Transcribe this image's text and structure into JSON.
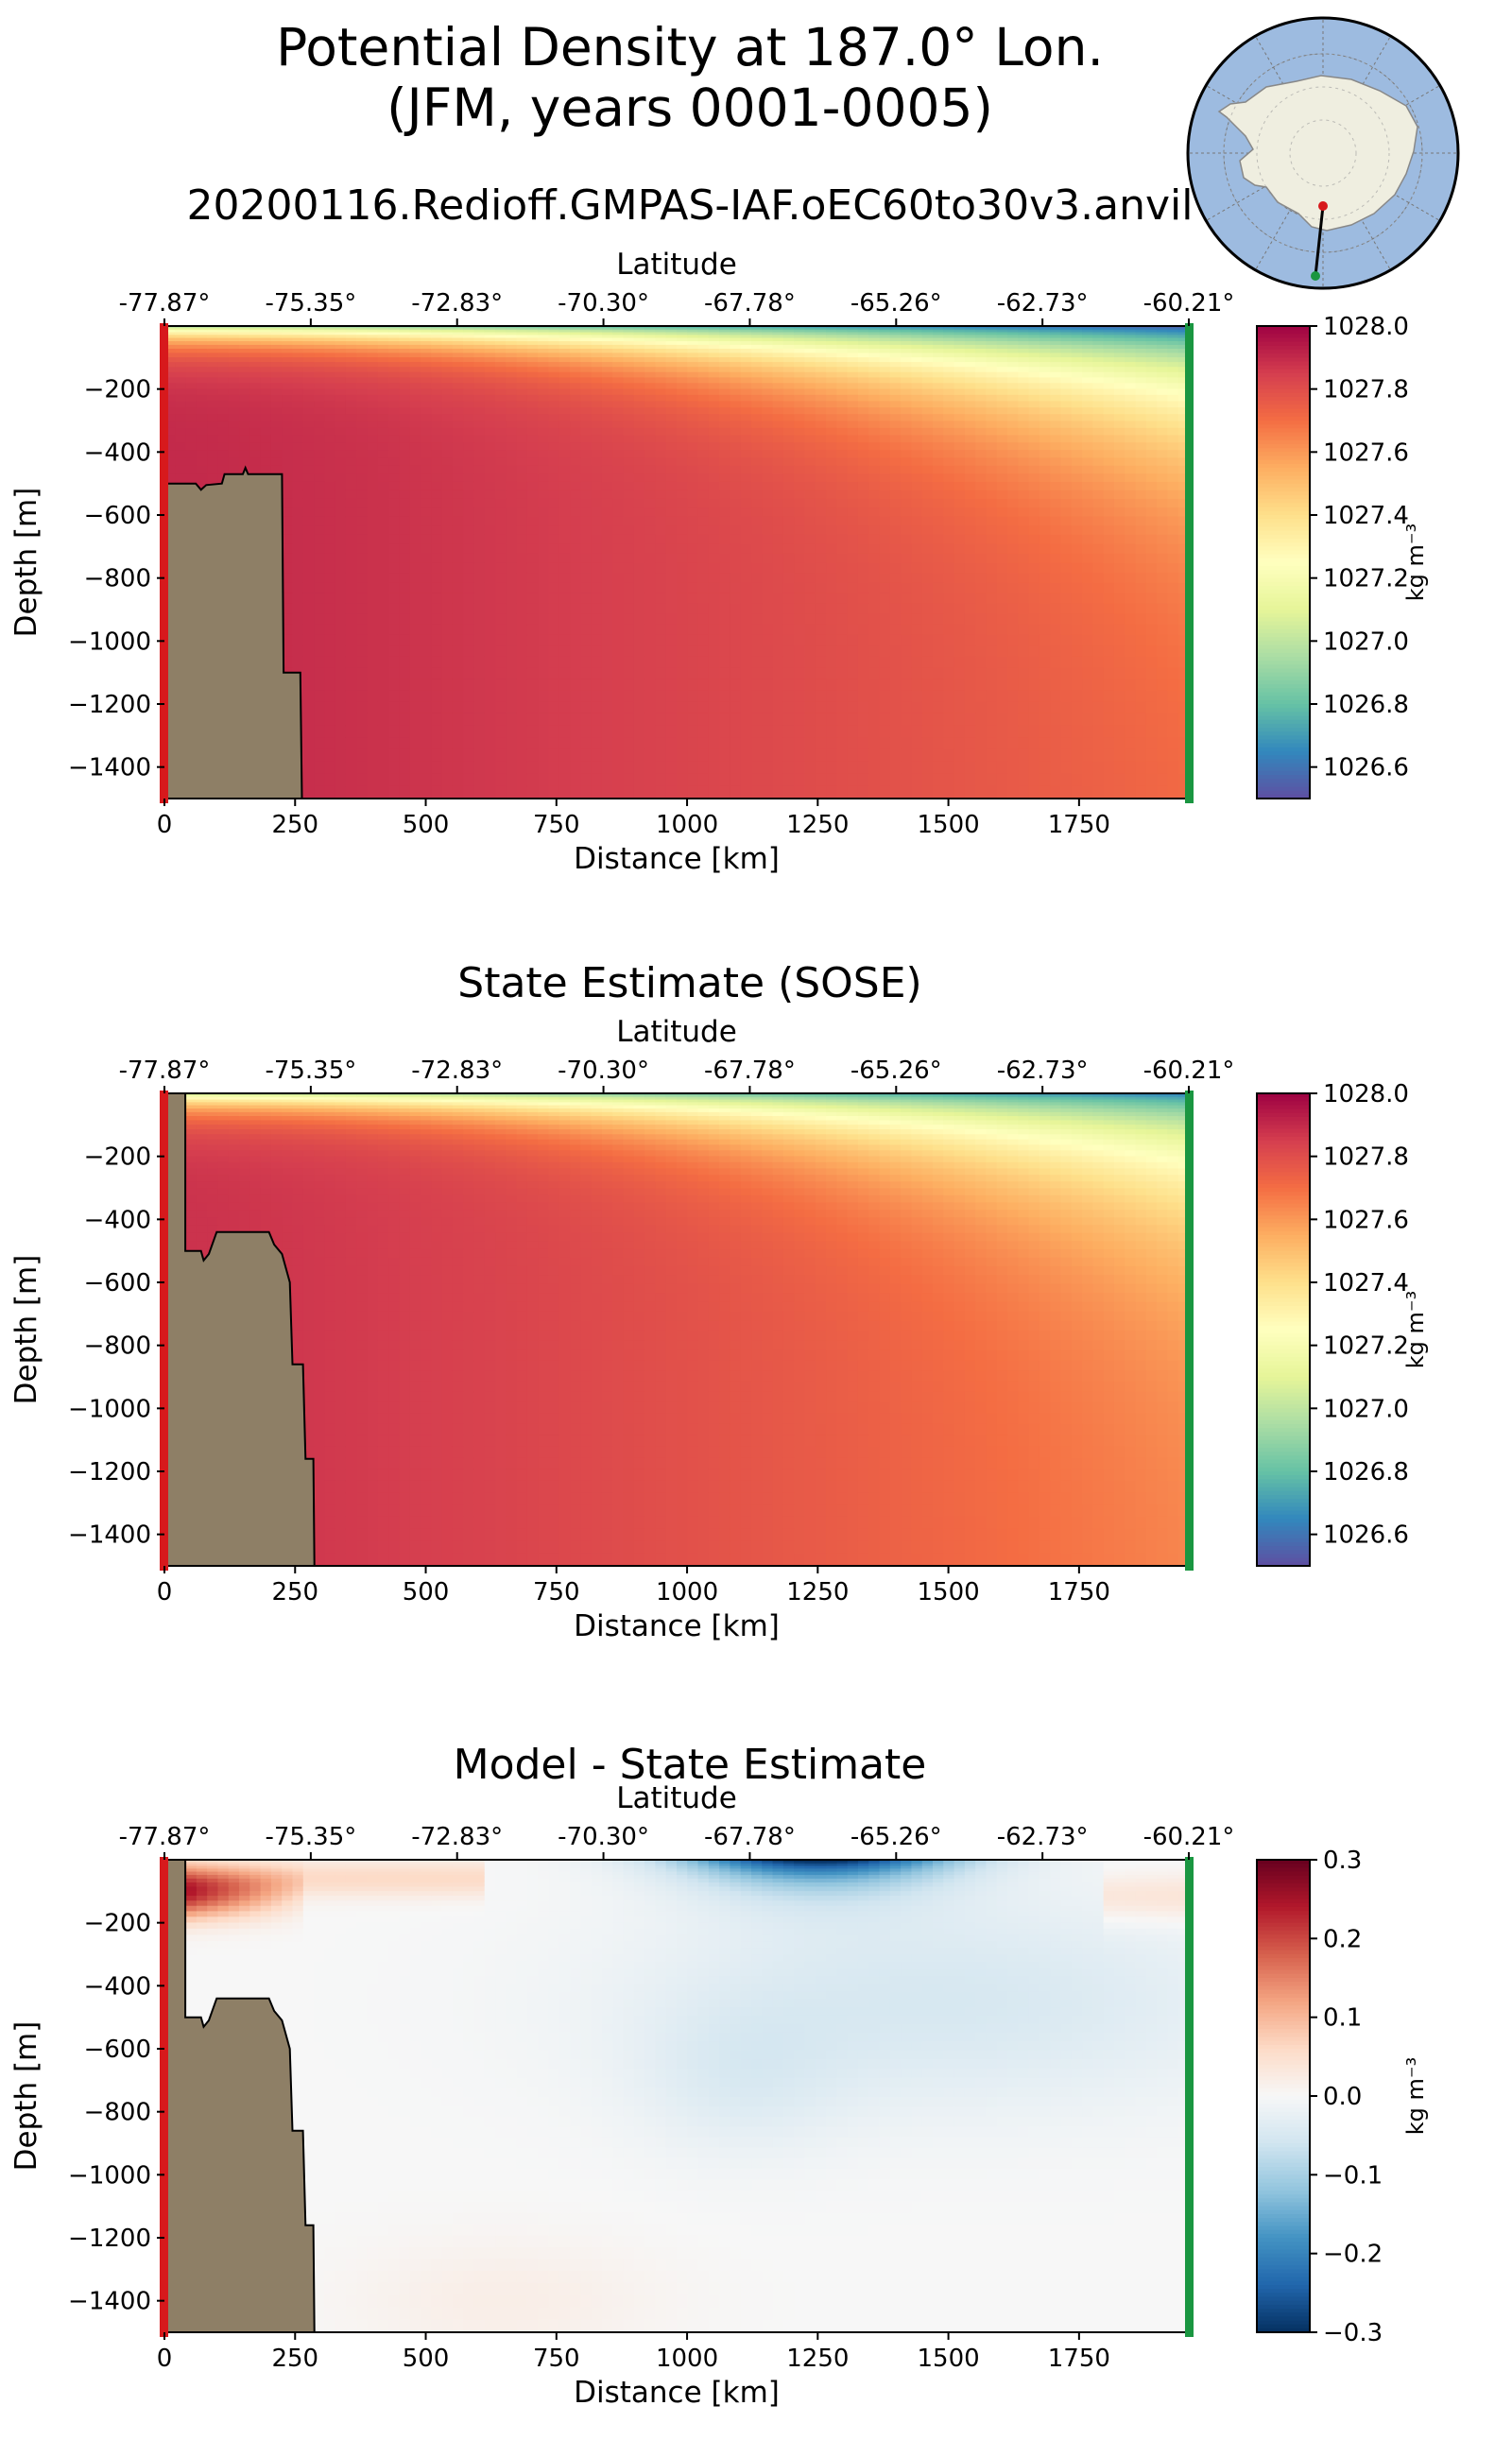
{
  "figure": {
    "title_line1": "Potential Density at 187.0° Lon.",
    "title_line2": "(JFM, years 0001-0005)",
    "subtitle": "20200116.Redioff.GMPAS-IAF.oEC60to30v3.anvil"
  },
  "colors": {
    "land": "#8e7f66",
    "start_marker": "#d7191c",
    "end_marker": "#1a9641",
    "ocean_map": "#9dbbe0",
    "antarctica": "#efeee0"
  },
  "chart_data": [
    {
      "type": "heatmap",
      "title": "",
      "xlabel": "Distance [km]",
      "ylabel": "Depth [m]",
      "top_xlabel": "Latitude",
      "x_ticks": [
        0,
        250,
        500,
        750,
        1000,
        1250,
        1500,
        1750
      ],
      "x_tick_labels": [
        "0",
        "250",
        "500",
        "750",
        "1000",
        "1250",
        "1500",
        "1750"
      ],
      "top_tick_labels": [
        "-77.87°",
        "-75.35°",
        "-72.83°",
        "-70.30°",
        "-67.78°",
        "-65.26°",
        "-62.73°",
        "-60.21°"
      ],
      "y_ticks": [
        -200,
        -400,
        -600,
        -800,
        -1000,
        -1200,
        -1400
      ],
      "y_tick_labels": [
        "−200",
        "−400",
        "−600",
        "−800",
        "−1000",
        "−1200",
        "−1400"
      ],
      "xlim": [
        0,
        1960
      ],
      "ylim": [
        -1500,
        0
      ],
      "colormap": "Spectral_r",
      "colorbar": {
        "label": "kg m⁻³",
        "range": [
          1026.5,
          1028.0
        ],
        "ticks": [
          "1028.0",
          "1027.8",
          "1027.6",
          "1027.4",
          "1027.2",
          "1027.0",
          "1026.8",
          "1026.6"
        ],
        "tick_values": [
          1028.0,
          1027.8,
          1027.6,
          1027.4,
          1027.2,
          1027.0,
          1026.8,
          1026.6
        ]
      },
      "field": {
        "surface_value": 1026.5,
        "deep_value_south": 1027.9,
        "deep_value_north": 1027.72
      },
      "bathymetry": [
        [
          0,
          -500
        ],
        [
          60,
          -500
        ],
        [
          70,
          -520
        ],
        [
          80,
          -505
        ],
        [
          110,
          -500
        ],
        [
          115,
          -470
        ],
        [
          150,
          -470
        ],
        [
          155,
          -450
        ],
        [
          160,
          -470
        ],
        [
          225,
          -470
        ],
        [
          228,
          -1100
        ],
        [
          260,
          -1100
        ],
        [
          263,
          -1500
        ]
      ]
    },
    {
      "type": "heatmap",
      "title": "State Estimate (SOSE)",
      "xlabel": "Distance [km]",
      "ylabel": "Depth [m]",
      "top_xlabel": "Latitude",
      "x_ticks": [
        0,
        250,
        500,
        750,
        1000,
        1250,
        1500,
        1750
      ],
      "x_tick_labels": [
        "0",
        "250",
        "500",
        "750",
        "1000",
        "1250",
        "1500",
        "1750"
      ],
      "top_tick_labels": [
        "-77.87°",
        "-75.35°",
        "-72.83°",
        "-70.30°",
        "-67.78°",
        "-65.26°",
        "-62.73°",
        "-60.21°"
      ],
      "y_ticks": [
        -200,
        -400,
        -600,
        -800,
        -1000,
        -1200,
        -1400
      ],
      "y_tick_labels": [
        "−200",
        "−400",
        "−600",
        "−800",
        "−1000",
        "−1200",
        "−1400"
      ],
      "xlim": [
        0,
        1960
      ],
      "ylim": [
        -1500,
        0
      ],
      "colormap": "Spectral_r",
      "colorbar": {
        "label": "kg m⁻³",
        "range": [
          1026.5,
          1028.0
        ],
        "ticks": [
          "1028.0",
          "1027.8",
          "1027.6",
          "1027.4",
          "1027.2",
          "1027.0",
          "1026.8",
          "1026.6"
        ],
        "tick_values": [
          1028.0,
          1027.8,
          1027.6,
          1027.4,
          1027.2,
          1027.0,
          1026.8,
          1026.6
        ]
      },
      "field": {
        "surface_value": 1026.6,
        "deep_value_south": 1027.88,
        "deep_value_north": 1027.65
      },
      "bathymetry": [
        [
          0,
          0
        ],
        [
          40,
          0
        ],
        [
          40,
          -500
        ],
        [
          70,
          -500
        ],
        [
          75,
          -530
        ],
        [
          85,
          -510
        ],
        [
          100,
          -440
        ],
        [
          200,
          -440
        ],
        [
          210,
          -480
        ],
        [
          225,
          -510
        ],
        [
          240,
          -600
        ],
        [
          245,
          -860
        ],
        [
          265,
          -860
        ],
        [
          270,
          -1160
        ],
        [
          285,
          -1160
        ],
        [
          287,
          -1500
        ]
      ]
    },
    {
      "type": "heatmap",
      "title": "Model - State Estimate",
      "xlabel": "Distance [km]",
      "ylabel": "Depth [m]",
      "top_xlabel": "Latitude",
      "x_ticks": [
        0,
        250,
        500,
        750,
        1000,
        1250,
        1500,
        1750
      ],
      "x_tick_labels": [
        "0",
        "250",
        "500",
        "750",
        "1000",
        "1250",
        "1500",
        "1750"
      ],
      "top_tick_labels": [
        "-77.87°",
        "-75.35°",
        "-72.83°",
        "-70.30°",
        "-67.78°",
        "-65.26°",
        "-62.73°",
        "-60.21°"
      ],
      "y_ticks": [
        -200,
        -400,
        -600,
        -800,
        -1000,
        -1200,
        -1400
      ],
      "y_tick_labels": [
        "−200",
        "−400",
        "−600",
        "−800",
        "−1000",
        "−1200",
        "−1400"
      ],
      "xlim": [
        0,
        1960
      ],
      "ylim": [
        -1500,
        0
      ],
      "colormap": "RdBu_r",
      "colorbar": {
        "label": "kg m⁻³",
        "range": [
          -0.3,
          0.3
        ],
        "ticks": [
          "0.3",
          "0.2",
          "0.1",
          "0.0",
          "−0.1",
          "−0.2",
          "−0.3"
        ],
        "tick_values": [
          0.3,
          0.2,
          0.1,
          0.0,
          -0.1,
          -0.2,
          -0.3
        ]
      },
      "field": {
        "near_shelf_surface_anomaly": 0.28,
        "surface_fresh_anomaly_min": -0.3,
        "fresh_anomaly_range_km": [
          850,
          1650
        ],
        "deep_anomaly": 0.0
      },
      "bathymetry": [
        [
          0,
          0
        ],
        [
          40,
          0
        ],
        [
          40,
          -500
        ],
        [
          70,
          -500
        ],
        [
          75,
          -530
        ],
        [
          85,
          -510
        ],
        [
          100,
          -440
        ],
        [
          200,
          -440
        ],
        [
          210,
          -480
        ],
        [
          225,
          -510
        ],
        [
          240,
          -600
        ],
        [
          245,
          -860
        ],
        [
          265,
          -860
        ],
        [
          270,
          -1160
        ],
        [
          285,
          -1160
        ],
        [
          287,
          -1500
        ]
      ]
    }
  ],
  "inset_map": {
    "description_name": "section-location-map"
  }
}
